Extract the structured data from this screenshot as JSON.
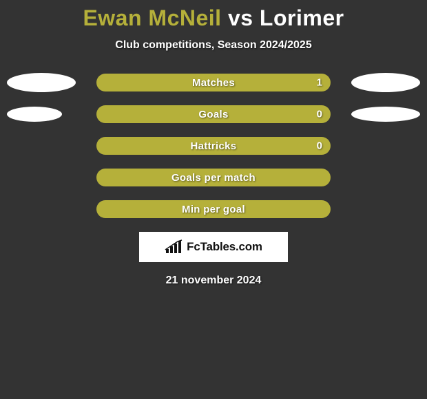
{
  "colors": {
    "background": "#333333",
    "accent": "#b5b03a",
    "text": "#ffffff",
    "ellipse": "#ffffff",
    "brand_bg": "#ffffff",
    "brand_text": "#111111"
  },
  "title": {
    "player1": "Ewan McNeil",
    "vs": "vs",
    "player2": "Lorimer"
  },
  "subtitle": "Club competitions, Season 2024/2025",
  "rows": [
    {
      "label": "Matches",
      "value": "1",
      "show_value": true,
      "bar_color": "#b5b03a",
      "left_ellipse": {
        "show": true,
        "width": 100,
        "height": 28
      },
      "right_ellipse": {
        "show": true,
        "width": 100,
        "height": 28
      }
    },
    {
      "label": "Goals",
      "value": "0",
      "show_value": true,
      "bar_color": "#b5b03a",
      "left_ellipse": {
        "show": true,
        "width": 80,
        "height": 22
      },
      "right_ellipse": {
        "show": true,
        "width": 100,
        "height": 22
      }
    },
    {
      "label": "Hattricks",
      "value": "0",
      "show_value": true,
      "bar_color": "#b5b03a",
      "left_ellipse": {
        "show": false
      },
      "right_ellipse": {
        "show": false
      }
    },
    {
      "label": "Goals per match",
      "value": "",
      "show_value": false,
      "bar_color": "#b5b03a",
      "left_ellipse": {
        "show": false
      },
      "right_ellipse": {
        "show": false
      }
    },
    {
      "label": "Min per goal",
      "value": "",
      "show_value": false,
      "bar_color": "#b5b03a",
      "left_ellipse": {
        "show": false
      },
      "right_ellipse": {
        "show": false
      }
    }
  ],
  "brand": "FcTables.com",
  "date": "21 november 2024"
}
